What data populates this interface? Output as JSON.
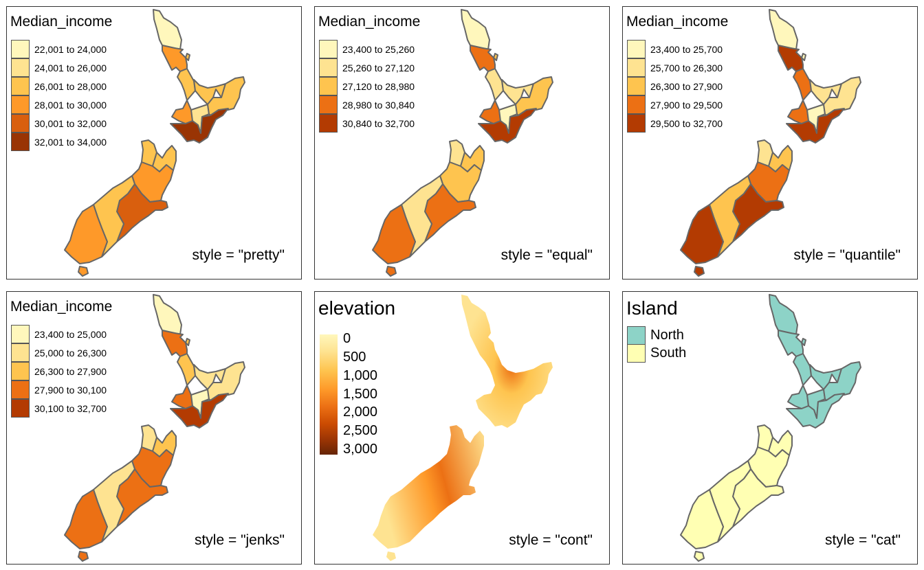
{
  "panels": [
    {
      "legend_title": "Median_income",
      "style_label": "style = \"pretty\"",
      "legend": [
        {
          "label": "22,001 to 24,000",
          "color": "#fff7bc"
        },
        {
          "label": "24,001 to 26,000",
          "color": "#fee391"
        },
        {
          "label": "26,001 to 28,000",
          "color": "#fec44f"
        },
        {
          "label": "28,001 to 30,000",
          "color": "#fe9929"
        },
        {
          "label": "30,001 to 32,000",
          "color": "#d95f0e"
        },
        {
          "label": "32,001 to 34,000",
          "color": "#993404"
        }
      ],
      "region_colors": [
        "#fff7bc",
        "#fe9929",
        "#fec44f",
        "#fec44f",
        "#fe9929",
        "#fee391",
        "#fec44f",
        "#993404",
        "#fec44f",
        "#fec44f",
        "#fe9929",
        "#d95f0e",
        "#fec44f",
        "#fe9929",
        "#fe9929",
        "#fec44f"
      ]
    },
    {
      "legend_title": "Median_income",
      "style_label": "style = \"equal\"",
      "legend": [
        {
          "label": "23,400 to 25,260",
          "color": "#fff7bc"
        },
        {
          "label": "25,260 to 27,120",
          "color": "#fee391"
        },
        {
          "label": "27,120 to 28,980",
          "color": "#fec44f"
        },
        {
          "label": "28,980 to 30,840",
          "color": "#ec7014"
        },
        {
          "label": "30,840 to 32,700",
          "color": "#b33b02"
        }
      ],
      "region_colors": [
        "#fff7bc",
        "#ec7014",
        "#fee391",
        "#fee391",
        "#ec7014",
        "#fff7bc",
        "#fec44f",
        "#b33b02",
        "#fee391",
        "#fec44f",
        "#fec44f",
        "#ec7014",
        "#fee391",
        "#ec7014",
        "#ec7014",
        "#fec44f"
      ]
    },
    {
      "legend_title": "Median_income",
      "style_label": "style = \"quantile\"",
      "legend": [
        {
          "label": "23,400 to 25,700",
          "color": "#fff7bc"
        },
        {
          "label": "25,700 to 26,300",
          "color": "#fee391"
        },
        {
          "label": "26,300 to 27,900",
          "color": "#fec44f"
        },
        {
          "label": "27,900 to 29,500",
          "color": "#ec7014"
        },
        {
          "label": "29,500 to 32,700",
          "color": "#b33b02"
        }
      ],
      "region_colors": [
        "#fff7bc",
        "#b33b02",
        "#ec7014",
        "#fee391",
        "#ec7014",
        "#fff7bc",
        "#fee391",
        "#b33b02",
        "#fee391",
        "#fec44f",
        "#ec7014",
        "#b33b02",
        "#fec44f",
        "#b33b02",
        "#b33b02",
        "#fff7bc"
      ]
    },
    {
      "legend_title": "Median_income",
      "style_label": "style = \"jenks\"",
      "legend": [
        {
          "label": "23,400 to 25,000",
          "color": "#fff7bc"
        },
        {
          "label": "25,000 to 26,300",
          "color": "#fee391"
        },
        {
          "label": "26,300 to 27,900",
          "color": "#fec44f"
        },
        {
          "label": "27,900 to 30,100",
          "color": "#ec7014"
        },
        {
          "label": "30,100 to 32,700",
          "color": "#b33b02"
        }
      ],
      "region_colors": [
        "#fff7bc",
        "#ec7014",
        "#fec44f",
        "#fee391",
        "#ec7014",
        "#fff7bc",
        "#fee391",
        "#b33b02",
        "#fee391",
        "#fec44f",
        "#ec7014",
        "#ec7014",
        "#fee391",
        "#ec7014",
        "#ec7014",
        "#fec44f"
      ]
    },
    {
      "legend_title": "elevation",
      "style_label": "style = \"cont\"",
      "ticks": [
        "0",
        "500",
        "1,000",
        "1,500",
        "2,000",
        "2,500",
        "3,000"
      ],
      "gradient_colors": [
        "#fff7bc",
        "#fee391",
        "#fec44f",
        "#fe9929",
        "#ec7014",
        "#cc4c02",
        "#993404",
        "#662506"
      ]
    },
    {
      "legend_title": "Island",
      "style_label": "style = \"cat\"",
      "legend": [
        {
          "label": "North",
          "color": "#8dd3c7"
        },
        {
          "label": "South",
          "color": "#ffffb3"
        }
      ]
    }
  ]
}
